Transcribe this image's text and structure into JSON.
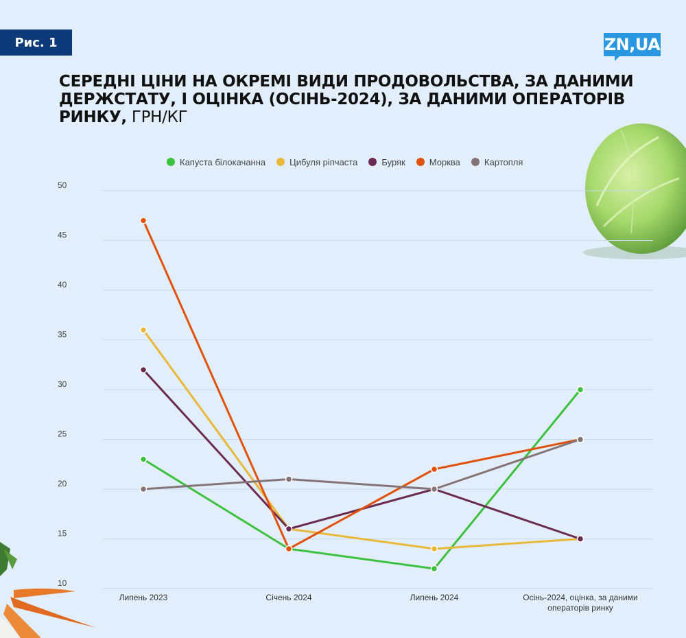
{
  "header": {
    "badge": "Рис. 1",
    "logo": "ZN,UA",
    "title_bold": "СЕРЕДНІ ЦІНИ НА ОКРЕМІ ВИДИ ПРОДОВОЛЬСТВА, ЗА ДАНИМИ ДЕРЖСТАТУ, І ОЦІНКА (ОСІНЬ-2024), ЗА ДАНИМИ ОПЕРАТОРІВ РИНКУ,",
    "title_unit": "ГРН/КГ"
  },
  "chart_data": {
    "type": "line",
    "categories": [
      "Липень 2023",
      "Січень 2024",
      "Липень 2024",
      "Осінь-2024, оцінка, за даними операторів ринку"
    ],
    "category_lines": [
      [
        "Липень 2023"
      ],
      [
        "Січень 2024"
      ],
      [
        "Липень 2024"
      ],
      [
        "Осінь-2024, оцінка, за даними",
        "операторів ринку"
      ]
    ],
    "ylim": [
      10,
      50
    ],
    "yticks": [
      10,
      15,
      20,
      25,
      30,
      35,
      40,
      45,
      50
    ],
    "grid": true,
    "legend_position": "top",
    "series": [
      {
        "name": "Капуста білокачанна",
        "color": "#3cc13f",
        "values": [
          23,
          14,
          12,
          30
        ]
      },
      {
        "name": "Цибуля ріпчаста",
        "color": "#e9b83a",
        "values": [
          36,
          16,
          14,
          15
        ]
      },
      {
        "name": "Буряк",
        "color": "#6b2a52",
        "values": [
          32,
          16,
          20,
          15
        ]
      },
      {
        "name": "Морква",
        "color": "#e0520c",
        "values": [
          47,
          14,
          22,
          25
        ]
      },
      {
        "name": "Картопля",
        "color": "#857476",
        "values": [
          20,
          21,
          20,
          25
        ]
      }
    ]
  }
}
